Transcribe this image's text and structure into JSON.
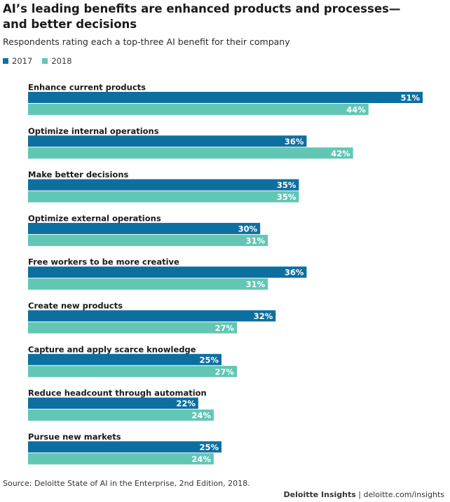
{
  "header": {
    "title_line1": "AI’s leading benefits are enhanced products and processes—",
    "title_line2": "and better decisions",
    "subtitle": "Respondents rating each a top-three AI benefit for their company"
  },
  "legend": [
    {
      "label": "2017",
      "color": "#0D6FA0"
    },
    {
      "label": "2018",
      "color": "#62C6B5"
    }
  ],
  "chart_data": {
    "type": "bar",
    "orientation": "horizontal",
    "title": "AI’s leading benefits are enhanced products and processes—and better decisions",
    "subtitle": "Respondents rating each a top-three AI benefit for their company",
    "categories": [
      "Enhance current products",
      "Optimize internal operations",
      "Make better decisions",
      "Optimize external operations",
      "Free workers to be more creative",
      "Create new products",
      "Capture and apply scarce knowledge",
      "Reduce headcount through automation",
      "Pursue new markets"
    ],
    "series": [
      {
        "name": "2017",
        "color": "#0D6FA0",
        "values": [
          51,
          36,
          35,
          30,
          36,
          32,
          25,
          22,
          25
        ]
      },
      {
        "name": "2018",
        "color": "#62C6B5",
        "values": [
          44,
          42,
          35,
          31,
          31,
          27,
          27,
          24,
          24
        ]
      }
    ],
    "value_suffix": "%",
    "xlim": [
      0,
      51
    ],
    "xlabel": "",
    "ylabel": "",
    "grid": false,
    "legend_position": "top-left"
  },
  "footer": {
    "source": "Source: Deloitte State of AI in the Enterprise, 2nd Edition, 2018.",
    "brand": "Deloitte Insights",
    "separator": " | ",
    "site": "deloitte.com/insights"
  }
}
